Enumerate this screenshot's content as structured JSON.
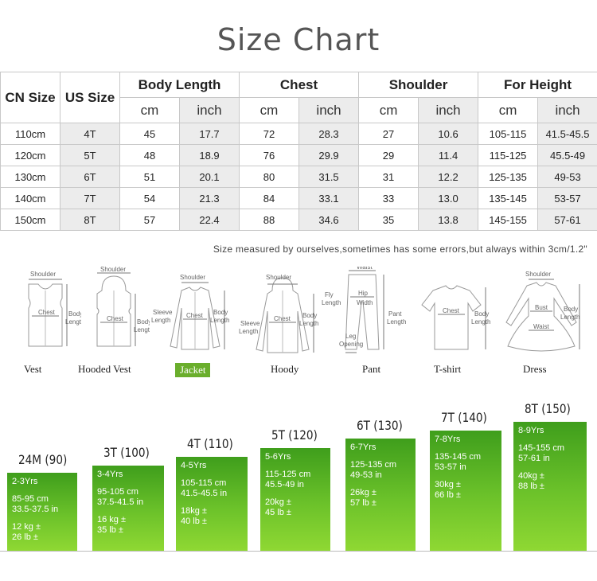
{
  "title": "Size Chart",
  "table": {
    "headers": [
      "CN Size",
      "US Size",
      "Body Length",
      "Chest",
      "Shoulder",
      "For Height"
    ],
    "units": [
      "cm",
      "inch",
      "cm",
      "inch",
      "cm",
      "inch",
      "cm",
      "inch"
    ],
    "rows": [
      [
        "110cm",
        "4T",
        "45",
        "17.7",
        "72",
        "28.3",
        "27",
        "10.6",
        "105-115",
        "41.5-45.5"
      ],
      [
        "120cm",
        "5T",
        "48",
        "18.9",
        "76",
        "29.9",
        "29",
        "11.4",
        "115-125",
        "45.5-49"
      ],
      [
        "130cm",
        "6T",
        "51",
        "20.1",
        "80",
        "31.5",
        "31",
        "12.2",
        "125-135",
        "49-53"
      ],
      [
        "140cm",
        "7T",
        "54",
        "21.3",
        "84",
        "33.1",
        "33",
        "13.0",
        "135-145",
        "53-57"
      ],
      [
        "150cm",
        "8T",
        "57",
        "22.4",
        "88",
        "34.6",
        "35",
        "13.8",
        "145-155",
        "57-61"
      ]
    ]
  },
  "note": "Size measured by ourselves,sometimes has some errors,but always within 3cm/1.2\"",
  "garments": [
    {
      "label": "Vest",
      "active": false
    },
    {
      "label": "Hooded Vest",
      "active": false
    },
    {
      "label": "Jacket",
      "active": true
    },
    {
      "label": "Hoody",
      "active": false
    },
    {
      "label": "Pant",
      "active": false
    },
    {
      "label": "T-shirt",
      "active": false
    },
    {
      "label": "Dress",
      "active": false
    }
  ],
  "measure_labels": {
    "shoulder": "Shoulder",
    "chest": "Chest",
    "body_length": "Body Length",
    "sleeve_length": "Sleeve Length",
    "waist": "Waist",
    "fly_length": "Fly Length",
    "hip_width": "Hip Width",
    "pant_length": "Pant Length",
    "leg_opening": "Leg Opening",
    "bust": "Bust"
  },
  "age_bars": [
    {
      "size": "24M (90)",
      "age": "2-3Yrs",
      "height_cm": "85-95 cm",
      "height_in": "33.5-37.5 in",
      "weight_kg": "12 kg ±",
      "weight_lb": "26 lb ±"
    },
    {
      "size": "3T (100)",
      "age": "3-4Yrs",
      "height_cm": "95-105 cm",
      "height_in": "37.5-41.5 in",
      "weight_kg": "16 kg ±",
      "weight_lb": "35 lb ±"
    },
    {
      "size": "4T (110)",
      "age": "4-5Yrs",
      "height_cm": "105-115 cm",
      "height_in": "41.5-45.5 in",
      "weight_kg": "18kg ±",
      "weight_lb": "40 lb ±"
    },
    {
      "size": "5T (120)",
      "age": "5-6Yrs",
      "height_cm": "115-125 cm",
      "height_in": "45.5-49 in",
      "weight_kg": "20kg ±",
      "weight_lb": "45 lb ±"
    },
    {
      "size": "6T (130)",
      "age": "6-7Yrs",
      "height_cm": "125-135 cm",
      "height_in": "49-53 in",
      "weight_kg": "26kg ±",
      "weight_lb": "57 lb ±"
    },
    {
      "size": "7T (140)",
      "age": "7-8Yrs",
      "height_cm": "135-145 cm",
      "height_in": "53-57 in",
      "weight_kg": "30kg ±",
      "weight_lb": "66 lb ±"
    },
    {
      "size": "8T (150)",
      "age": "8-9Yrs",
      "height_cm": "145-155 cm",
      "height_in": "57-61 in",
      "weight_kg": "40kg ±",
      "weight_lb": "88 lb ±"
    }
  ]
}
